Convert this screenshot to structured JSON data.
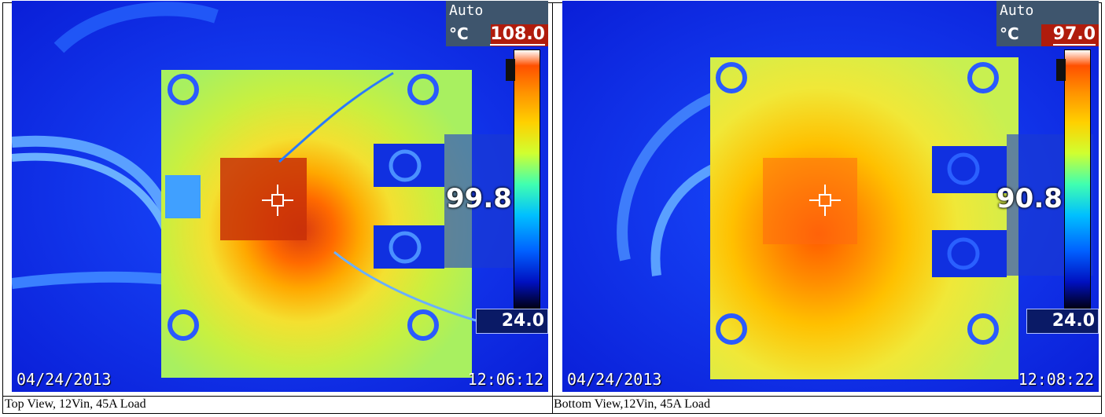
{
  "panels": [
    {
      "mode": "Auto",
      "unit": "°C",
      "max_temp": "108.0",
      "min_temp": "24.0",
      "spot_temp": "99.8",
      "date": "04/24/2013",
      "time": "12:06:12",
      "caption": "Top View, 12Vin, 45A Load"
    },
    {
      "mode": "Auto",
      "unit": "°C",
      "max_temp": "97.0",
      "min_temp": "24.0",
      "spot_temp": "90.8",
      "date": "04/24/2013",
      "time": "12:08:22",
      "caption": "Bottom View,12Vin, 45A Load"
    }
  ],
  "icons": [
    "crosshair-icon",
    "scale-marker-icon"
  ]
}
